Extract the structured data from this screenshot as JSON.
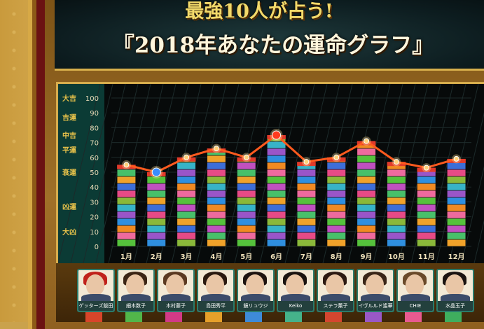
{
  "header": {
    "title_line1": "最強10人が占う!",
    "title_line2": "『2018年あなたの運命グラフ』"
  },
  "chart_data": {
    "type": "bar",
    "title": "2018年あなたの運命グラフ",
    "categories": [
      "1月",
      "2月",
      "3月",
      "4月",
      "5月",
      "6月",
      "7月",
      "8月",
      "9月",
      "10月",
      "11月",
      "12月"
    ],
    "values": [
      55,
      50,
      60,
      66,
      60,
      75,
      57,
      60,
      71,
      57,
      53,
      59
    ],
    "y_ticks": [
      0,
      10,
      20,
      30,
      40,
      50,
      60,
      70,
      80,
      90,
      100
    ],
    "ylim": [
      0,
      100
    ],
    "fortune_levels": [
      {
        "label": "大吉",
        "value": 100
      },
      {
        "label": "吉運",
        "value": 87
      },
      {
        "label": "中吉",
        "value": 75
      },
      {
        "label": "平運",
        "value": 65
      },
      {
        "label": "衰運",
        "value": 50
      },
      {
        "label": "凶運",
        "value": 27
      },
      {
        "label": "大凶",
        "value": 10
      }
    ],
    "highlight": {
      "peak_month": "6月",
      "low_month": "2月"
    },
    "grid": true,
    "segment_colors": [
      "#55c23c",
      "#ee6a9e",
      "#f08a22",
      "#2f8fdf",
      "#9a55c8",
      "#37b3c8",
      "#8ab83a",
      "#e74a86",
      "#3d6ed8",
      "#f0a22a",
      "#48c06a",
      "#c050c0"
    ]
  },
  "fortune_tellers": [
    {
      "name": "ゲッターズ飯田"
    },
    {
      "name": "細木数子"
    },
    {
      "name": "木村藤子"
    },
    {
      "name": "島田秀平"
    },
    {
      "name": "鏡リュウジ"
    },
    {
      "name": "Keiko"
    },
    {
      "name": "ステラ薫子"
    },
    {
      "name": "イヴルルド遙華"
    },
    {
      "name": "CHIE"
    },
    {
      "name": "水晶玉子"
    }
  ],
  "colors": {
    "line": "#ff5a1e",
    "peak": "#ff3b1f",
    "low": "#3a8cff",
    "label_gold": "#e8c24a"
  }
}
